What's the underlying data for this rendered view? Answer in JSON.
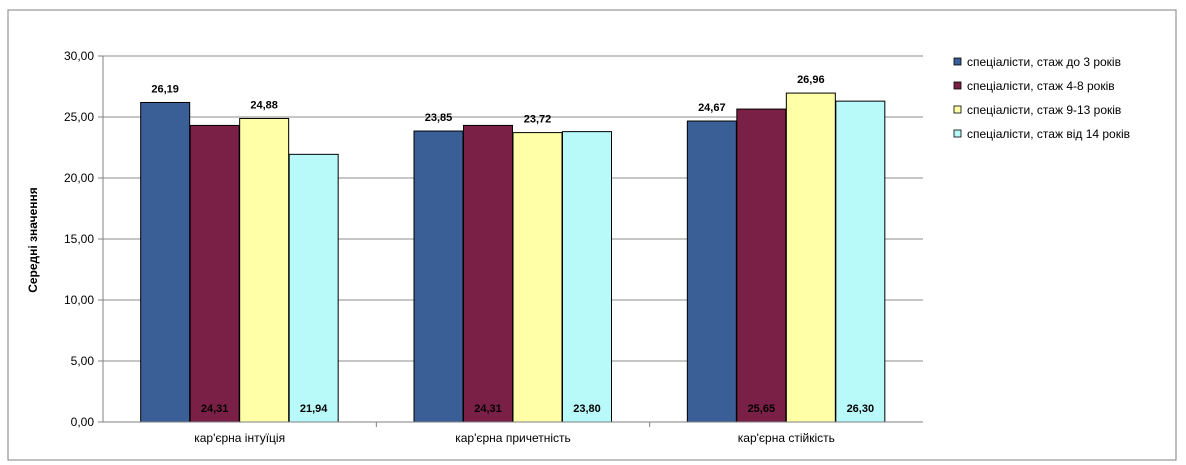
{
  "chart_data": {
    "type": "bar",
    "title": "",
    "xlabel": "",
    "ylabel": "Середні значення",
    "ylim": [
      0,
      30
    ],
    "y_ticks": [
      "0,00",
      "5,00",
      "10,00",
      "15,00",
      "20,00",
      "25,00",
      "30,00"
    ],
    "grid": "horizontal",
    "legend_position": "right",
    "categories": [
      "кар'єрна інтуїція",
      "кар'єрна причетність",
      "кар'єрна стійкість"
    ],
    "series": [
      {
        "name": "спеціалісти, стаж до 3 років",
        "color": "#3A5F96",
        "values": [
          26.19,
          23.85,
          24.67
        ],
        "labels": [
          "26,19",
          "23,85",
          "24,67"
        ]
      },
      {
        "name": "спеціалісти, стаж 4-8 років",
        "color": "#7A2047",
        "values": [
          24.31,
          24.31,
          25.65
        ],
        "labels": [
          "24,31",
          "24,31",
          "25,65"
        ]
      },
      {
        "name": "спеціалісти, стаж 9-13 років",
        "color": "#FFFFA8",
        "values": [
          24.88,
          23.72,
          26.96
        ],
        "labels": [
          "24,88",
          "23,72",
          "26,96"
        ]
      },
      {
        "name": "спеціалісти, стаж від 14 років",
        "color": "#B8FAFA",
        "values": [
          21.94,
          23.8,
          26.3
        ],
        "labels": [
          "21,94",
          "23,80",
          "26,30"
        ]
      }
    ]
  }
}
